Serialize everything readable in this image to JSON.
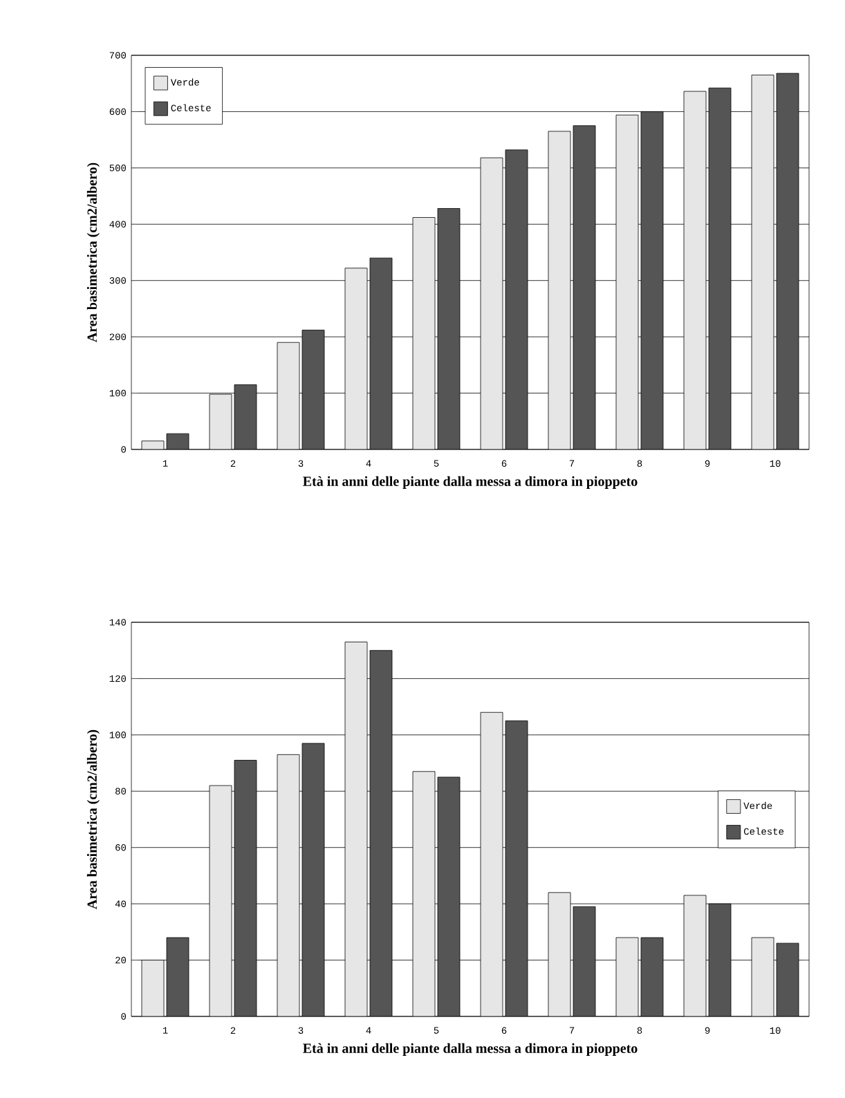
{
  "chart_data": [
    {
      "type": "bar",
      "xlabel": "Età in anni delle piante dalla messa a dimora in pioppeto",
      "ylabel": "Area basimetrica (cm2/albero)",
      "categories": [
        "1",
        "2",
        "3",
        "4",
        "5",
        "6",
        "7",
        "8",
        "9",
        "10"
      ],
      "series": [
        {
          "name": "Verde",
          "color": "#e6e6e6",
          "values": [
            15,
            98,
            190,
            322,
            412,
            518,
            565,
            594,
            636,
            665
          ]
        },
        {
          "name": "Celeste",
          "color": "#555555",
          "values": [
            28,
            115,
            212,
            340,
            428,
            532,
            575,
            600,
            642,
            668
          ]
        }
      ],
      "ylim": [
        0,
        700
      ],
      "yticks": [
        0,
        100,
        200,
        300,
        400,
        500,
        600,
        700
      ],
      "grid": "y",
      "legend": "top left"
    },
    {
      "type": "bar",
      "xlabel": "Età in anni delle piante dalla messa a dimora in pioppeto",
      "ylabel": "Area basimetrica (cm2/albero)",
      "categories": [
        "1",
        "2",
        "3",
        "4",
        "5",
        "6",
        "7",
        "8",
        "9",
        "10"
      ],
      "series": [
        {
          "name": "Verde",
          "color": "#e6e6e6",
          "values": [
            20,
            82,
            93,
            133,
            87,
            108,
            44,
            28,
            43,
            28
          ]
        },
        {
          "name": "Celeste",
          "color": "#555555",
          "values": [
            28,
            91,
            97,
            130,
            85,
            105,
            39,
            28,
            40,
            26
          ]
        }
      ],
      "ylim": [
        0,
        140
      ],
      "yticks": [
        0,
        20,
        40,
        60,
        80,
        100,
        120,
        140
      ],
      "grid": "y",
      "legend": "right"
    }
  ]
}
